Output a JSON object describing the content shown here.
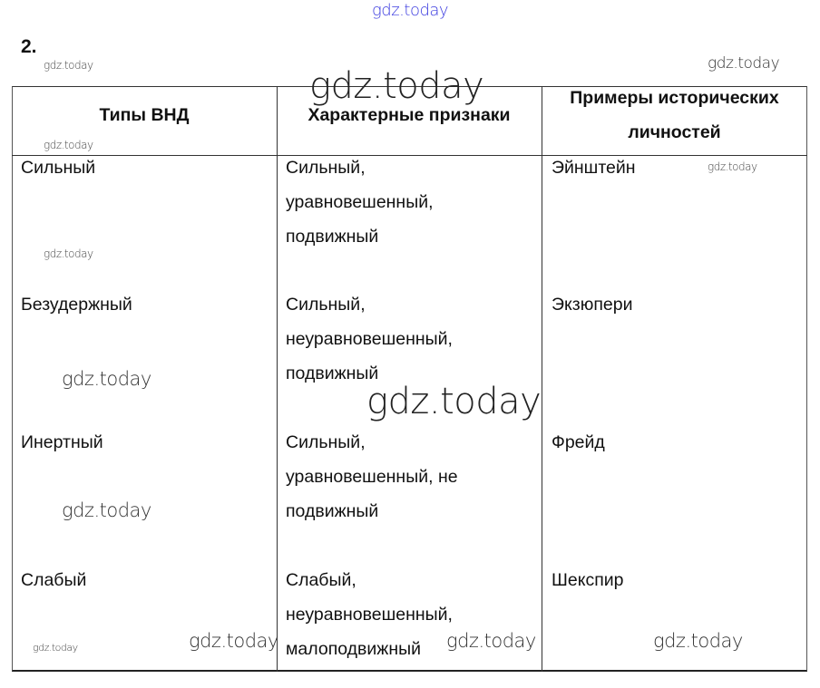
{
  "task_number": "2.",
  "table": {
    "headers": [
      "Типы ВНД",
      "Характерные признаки",
      "Примеры исторических личностей"
    ],
    "header_lines": [
      [
        "Типы ВНД"
      ],
      [
        "Характерные признаки"
      ],
      [
        "Примеры исторических",
        "личностей"
      ]
    ],
    "rows": [
      {
        "type": "Сильный",
        "traits": [
          "Сильный,",
          "уравновешенный,",
          "подвижный"
        ],
        "example": "Эйнштейн"
      },
      {
        "type": "Безудержный",
        "traits": [
          "Сильный,",
          "неуравновешенный,",
          "подвижный"
        ],
        "example": "Экзюпери"
      },
      {
        "type": "Инертный",
        "traits": [
          "Сильный,",
          "уравновешенный, не",
          "подвижный"
        ],
        "example": "Фрейд"
      },
      {
        "type": "Слабый",
        "traits": [
          "Слабый,",
          "неуравновешенный,",
          "малоподвижный"
        ],
        "example": "Шекспир"
      }
    ]
  },
  "watermarks": [
    "gdz.today",
    "gdz.today",
    "gdz.today",
    "gdz.today",
    "gdz.today",
    "gdz.today",
    "gdz.today",
    "gdz.today",
    "gdz.today",
    "gdz.today",
    "gdz.today",
    "gdz.today",
    "gdz.today",
    "gdz.today"
  ],
  "colors": {
    "top_watermark": "#3a3adf"
  }
}
